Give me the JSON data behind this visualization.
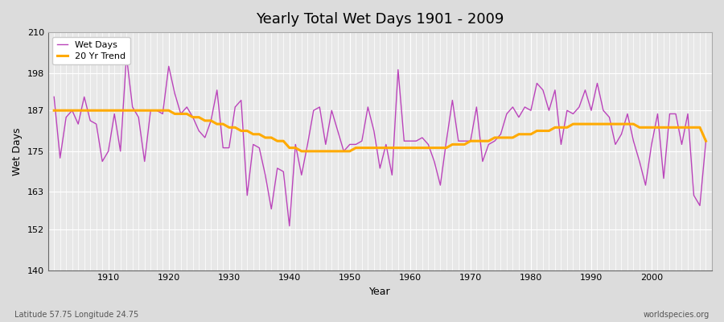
{
  "title": "Yearly Total Wet Days 1901 - 2009",
  "xlabel": "Year",
  "ylabel": "Wet Days",
  "subtitle": "Latitude 57.75 Longitude 24.75",
  "watermark": "worldspecies.org",
  "ylim": [
    140,
    210
  ],
  "yticks": [
    140,
    152,
    163,
    175,
    187,
    198,
    210
  ],
  "wet_days_color": "#bb44bb",
  "trend_color": "#ffaa00",
  "background_color": "#dcdcdc",
  "plot_bg_color": "#e8e8e8",
  "years": [
    1901,
    1902,
    1903,
    1904,
    1905,
    1906,
    1907,
    1908,
    1909,
    1910,
    1911,
    1912,
    1913,
    1914,
    1915,
    1916,
    1917,
    1918,
    1919,
    1920,
    1921,
    1922,
    1923,
    1924,
    1925,
    1926,
    1927,
    1928,
    1929,
    1930,
    1931,
    1932,
    1933,
    1934,
    1935,
    1936,
    1937,
    1938,
    1939,
    1940,
    1941,
    1942,
    1943,
    1944,
    1945,
    1946,
    1947,
    1948,
    1949,
    1950,
    1951,
    1952,
    1953,
    1954,
    1955,
    1956,
    1957,
    1958,
    1959,
    1960,
    1961,
    1962,
    1963,
    1964,
    1965,
    1966,
    1967,
    1968,
    1969,
    1970,
    1971,
    1972,
    1973,
    1974,
    1975,
    1976,
    1977,
    1978,
    1979,
    1980,
    1981,
    1982,
    1983,
    1984,
    1985,
    1986,
    1987,
    1988,
    1989,
    1990,
    1991,
    1992,
    1993,
    1994,
    1995,
    1996,
    1997,
    1998,
    1999,
    2000,
    2001,
    2002,
    2003,
    2004,
    2005,
    2006,
    2007,
    2008,
    2009
  ],
  "wet_days": [
    191,
    173,
    185,
    187,
    183,
    191,
    184,
    183,
    172,
    175,
    186,
    175,
    203,
    188,
    185,
    172,
    187,
    187,
    186,
    200,
    192,
    186,
    188,
    185,
    181,
    179,
    184,
    193,
    176,
    176,
    188,
    190,
    162,
    177,
    176,
    168,
    158,
    170,
    169,
    153,
    177,
    168,
    177,
    187,
    188,
    177,
    187,
    181,
    175,
    177,
    177,
    178,
    188,
    181,
    170,
    177,
    168,
    199,
    178,
    178,
    178,
    179,
    177,
    172,
    165,
    178,
    190,
    178,
    178,
    178,
    188,
    172,
    177,
    178,
    180,
    186,
    188,
    185,
    188,
    187,
    195,
    193,
    187,
    193,
    177,
    187,
    186,
    188,
    193,
    187,
    195,
    187,
    185,
    177,
    180,
    186,
    178,
    172,
    165,
    177,
    186,
    167,
    186,
    186,
    177,
    186,
    162,
    159,
    178
  ],
  "trend": [
    187,
    187,
    187,
    187,
    187,
    187,
    187,
    187,
    187,
    187,
    187,
    187,
    187,
    187,
    187,
    187,
    187,
    187,
    187,
    187,
    186,
    186,
    186,
    185,
    185,
    184,
    184,
    183,
    183,
    182,
    182,
    181,
    181,
    180,
    180,
    179,
    179,
    178,
    178,
    176,
    176,
    175,
    175,
    175,
    175,
    175,
    175,
    175,
    175,
    175,
    176,
    176,
    176,
    176,
    176,
    176,
    176,
    176,
    176,
    176,
    176,
    176,
    176,
    176,
    176,
    176,
    177,
    177,
    177,
    178,
    178,
    178,
    178,
    179,
    179,
    179,
    179,
    180,
    180,
    180,
    181,
    181,
    181,
    182,
    182,
    182,
    183,
    183,
    183,
    183,
    183,
    183,
    183,
    183,
    183,
    183,
    183,
    182,
    182,
    182,
    182,
    182,
    182,
    182,
    182,
    182,
    182,
    182,
    178
  ]
}
